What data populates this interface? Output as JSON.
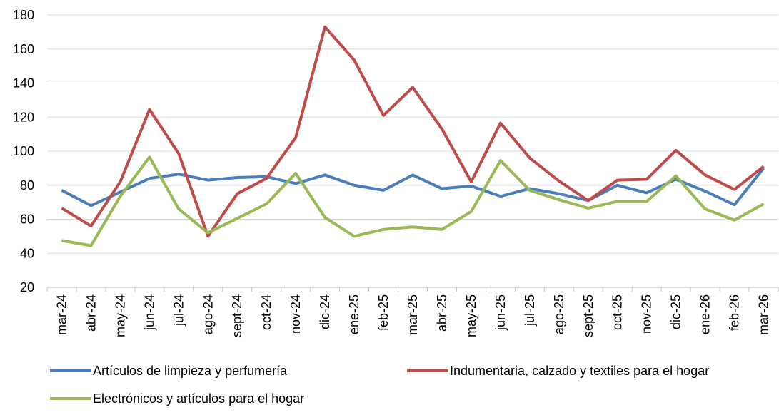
{
  "chart_data": {
    "type": "line",
    "categories": [
      "mar-24",
      "abr-24",
      "may-24",
      "jun-24",
      "jul-24",
      "ago-24",
      "sept-24",
      "oct-24",
      "nov-24",
      "dic-24",
      "ene-25",
      "feb-25",
      "mar-25",
      "abr-25",
      "may-25",
      "jun-25",
      "jul-25",
      "ago-25",
      "sept-25",
      "oct-25",
      "nov-25",
      "dic-25",
      "ene-26",
      "feb-26",
      "mar-26"
    ],
    "series": [
      {
        "name": "Artículos de limpieza y perfumería",
        "color": "#4a7ebb",
        "values": [
          77,
          68,
          76,
          84,
          86.5,
          83,
          84.5,
          85,
          81,
          86,
          80,
          77,
          86,
          78,
          79.5,
          73.5,
          78,
          75,
          71,
          80,
          75.5,
          83.5,
          76.5,
          68.5,
          90
        ]
      },
      {
        "name": "Indumentaria, calzado y textiles para el hogar",
        "color": "#be4b48",
        "values": [
          66.5,
          56,
          82,
          124.5,
          98.5,
          50,
          75,
          84,
          108,
          173,
          153.5,
          121,
          137.5,
          113,
          82,
          116.5,
          96,
          82.5,
          71,
          83,
          83.5,
          100.5,
          86,
          77.5,
          91
        ]
      },
      {
        "name": "Electrónicos y artículos para el hogar",
        "color": "#98b954",
        "values": [
          47.5,
          44.5,
          73.5,
          96.5,
          66,
          52,
          60.5,
          69,
          87,
          61,
          50,
          54,
          55.5,
          54,
          64.5,
          94.5,
          77,
          71.5,
          66.5,
          70.5,
          70.5,
          85.5,
          66,
          59.5,
          69
        ]
      }
    ],
    "ylim": [
      20,
      180
    ],
    "yticks": [
      20,
      40,
      60,
      80,
      100,
      120,
      140,
      160,
      180
    ],
    "grid": true
  }
}
